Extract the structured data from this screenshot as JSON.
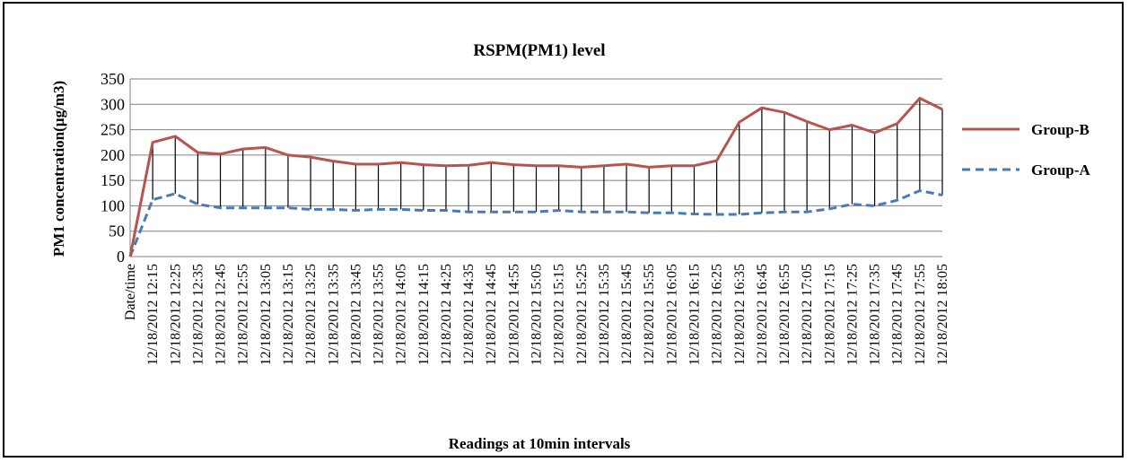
{
  "chart_data": {
    "type": "line",
    "title": "RSPM(PM1) level",
    "xlabel": "Readings at 10min intervals",
    "ylabel": "PM1 concentration(µg/m3)",
    "ylim": [
      0,
      350
    ],
    "yticks": [
      0,
      50,
      100,
      150,
      200,
      250,
      300,
      350
    ],
    "grid": true,
    "legend_position": "right",
    "categories": [
      "Date/time",
      "12/18/2012 12:15",
      "12/18/2012 12:25",
      "12/18/2012 12:35",
      "12/18/2012 12:45",
      "12/18/2012 12:55",
      "12/18/2012 13:05",
      "12/18/2012 13:15",
      "12/18/2012 13:25",
      "12/18/2012 13:35",
      "12/18/2012 13:45",
      "12/18/2012 13:55",
      "12/18/2012 14:05",
      "12/18/2012 14:15",
      "12/18/2012 14:25",
      "12/18/2012 14:35",
      "12/18/2012 14:45",
      "12/18/2012 14:55",
      "12/18/2012 15:05",
      "12/18/2012 15:15",
      "12/18/2012 15:25",
      "12/18/2012 15:35",
      "12/18/2012 15:45",
      "12/18/2012 15:55",
      "12/18/2012 16:05",
      "12/18/2012 16:15",
      "12/18/2012 16:25",
      "12/18/2012 16:35",
      "12/18/2012 16:45",
      "12/18/2012 16:55",
      "12/18/2012 17:05",
      "12/18/2012 17:15",
      "12/18/2012 17:25",
      "12/18/2012 17:35",
      "12/18/2012 17:45",
      "12/18/2012 17:55",
      "12/18/2012 18:05"
    ],
    "series": [
      {
        "name": "Group-B",
        "color": "#b85450",
        "style": "solid",
        "values": [
          0,
          225,
          237,
          205,
          202,
          212,
          215,
          200,
          196,
          188,
          182,
          182,
          185,
          181,
          179,
          180,
          185,
          181,
          179,
          179,
          176,
          179,
          182,
          176,
          179,
          179,
          189,
          265,
          293,
          284,
          266,
          250,
          259,
          244,
          262,
          312,
          290
        ]
      },
      {
        "name": "Group-A",
        "color": "#4a7ab5",
        "style": "dashed",
        "values": [
          0,
          112,
          124,
          103,
          96,
          96,
          96,
          96,
          93,
          93,
          91,
          93,
          93,
          91,
          91,
          88,
          88,
          88,
          88,
          91,
          88,
          88,
          88,
          86,
          86,
          84,
          83,
          83,
          86,
          88,
          88,
          94,
          103,
          100,
          111,
          130,
          121
        ]
      }
    ]
  }
}
